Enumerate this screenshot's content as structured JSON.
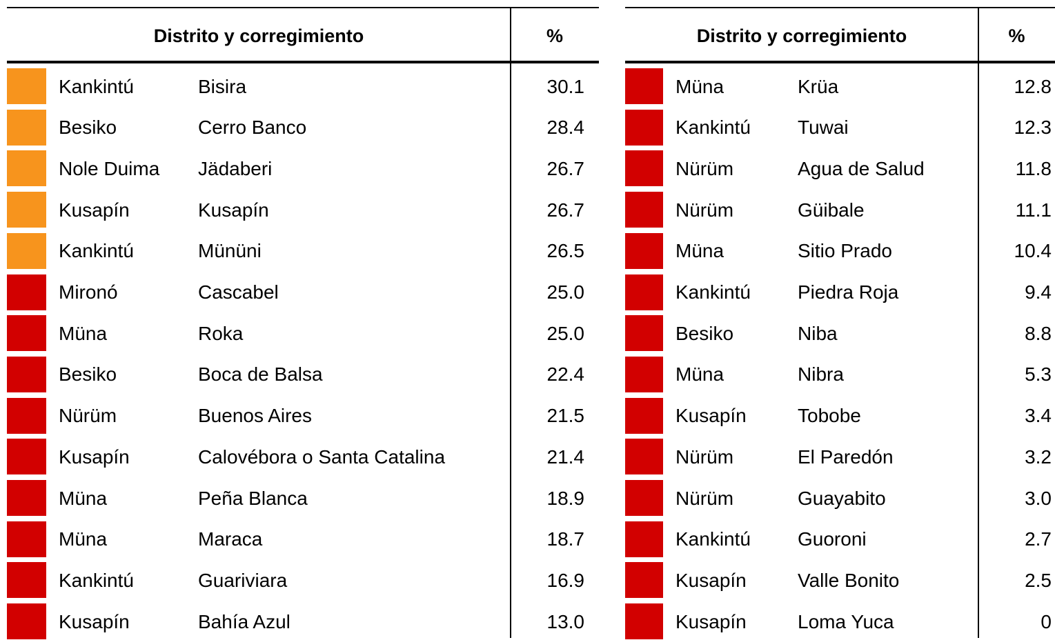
{
  "tables": [
    {
      "header": [
        "Distrito y corregimiento",
        "%"
      ],
      "rows": [
        {
          "district": "Kankintú",
          "corregimiento": "Bisira",
          "value": "30.1",
          "color": "#f7941d"
        },
        {
          "district": "Besiko",
          "corregimiento": "Cerro Banco",
          "value": "28.4",
          "color": "#f7941d"
        },
        {
          "district": "Nole Duima",
          "corregimiento": "Jädaberi",
          "value": "26.7",
          "color": "#f7941d"
        },
        {
          "district": "Kusapín",
          "corregimiento": "Kusapín",
          "value": "26.7",
          "color": "#f7941d"
        },
        {
          "district": "Kankintú",
          "corregimiento": "Mününi",
          "value": "26.5",
          "color": "#f7941d"
        },
        {
          "district": "Mironó",
          "corregimiento": "Cascabel",
          "value": "25.0",
          "color": "#d20000"
        },
        {
          "district": "Müna",
          "corregimiento": "Roka",
          "value": "25.0",
          "color": "#d20000"
        },
        {
          "district": "Besiko",
          "corregimiento": "Boca de Balsa",
          "value": "22.4",
          "color": "#d20000"
        },
        {
          "district": "Nürüm",
          "corregimiento": "Buenos Aires",
          "value": "21.5",
          "color": "#d20000"
        },
        {
          "district": "Kusapín",
          "corregimiento": "Calovébora o Santa Catalina",
          "value": "21.4",
          "color": "#d20000"
        },
        {
          "district": "Müna",
          "corregimiento": "Peña Blanca",
          "value": "18.9",
          "color": "#d20000"
        },
        {
          "district": "Müna",
          "corregimiento": "Maraca",
          "value": "18.7",
          "color": "#d20000"
        },
        {
          "district": "Kankintú",
          "corregimiento": "Guariviara",
          "value": "16.9",
          "color": "#d20000"
        },
        {
          "district": "Kusapín",
          "corregimiento": "Bahía Azul",
          "value": "13.0",
          "color": "#d20000"
        }
      ]
    },
    {
      "header": [
        "Distrito y corregimiento",
        "%"
      ],
      "rows": [
        {
          "district": "Müna",
          "corregimiento": "Krüa",
          "value": "12.8",
          "color": "#d20000"
        },
        {
          "district": "Kankintú",
          "corregimiento": "Tuwai",
          "value": "12.3",
          "color": "#d20000"
        },
        {
          "district": "Nürüm",
          "corregimiento": "Agua de Salud",
          "value": "11.8",
          "color": "#d20000"
        },
        {
          "district": "Nürüm",
          "corregimiento": "Güibale",
          "value": "11.1",
          "color": "#d20000"
        },
        {
          "district": "Müna",
          "corregimiento": "Sitio Prado",
          "value": "10.4",
          "color": "#d20000"
        },
        {
          "district": "Kankintú",
          "corregimiento": "Piedra Roja",
          "value": "9.4",
          "color": "#d20000"
        },
        {
          "district": "Besiko",
          "corregimiento": "Niba",
          "value": "8.8",
          "color": "#d20000"
        },
        {
          "district": "Müna",
          "corregimiento": "Nibra",
          "value": "5.3",
          "color": "#d20000"
        },
        {
          "district": "Kusapín",
          "corregimiento": "Tobobe",
          "value": "3.4",
          "color": "#d20000"
        },
        {
          "district": "Nürüm",
          "corregimiento": "El Paredón",
          "value": "3.2",
          "color": "#d20000"
        },
        {
          "district": "Nürüm",
          "corregimiento": "Guayabito",
          "value": "3.0",
          "color": "#d20000"
        },
        {
          "district": "Kankintú",
          "corregimiento": "Guoroni",
          "value": "2.7",
          "color": "#d20000"
        },
        {
          "district": "Kusapín",
          "corregimiento": "Valle Bonito",
          "value": "2.5",
          "color": "#d20000"
        },
        {
          "district": "Kusapín",
          "corregimiento": "Loma Yuca",
          "value": "0",
          "color": "#d20000"
        }
      ]
    }
  ]
}
